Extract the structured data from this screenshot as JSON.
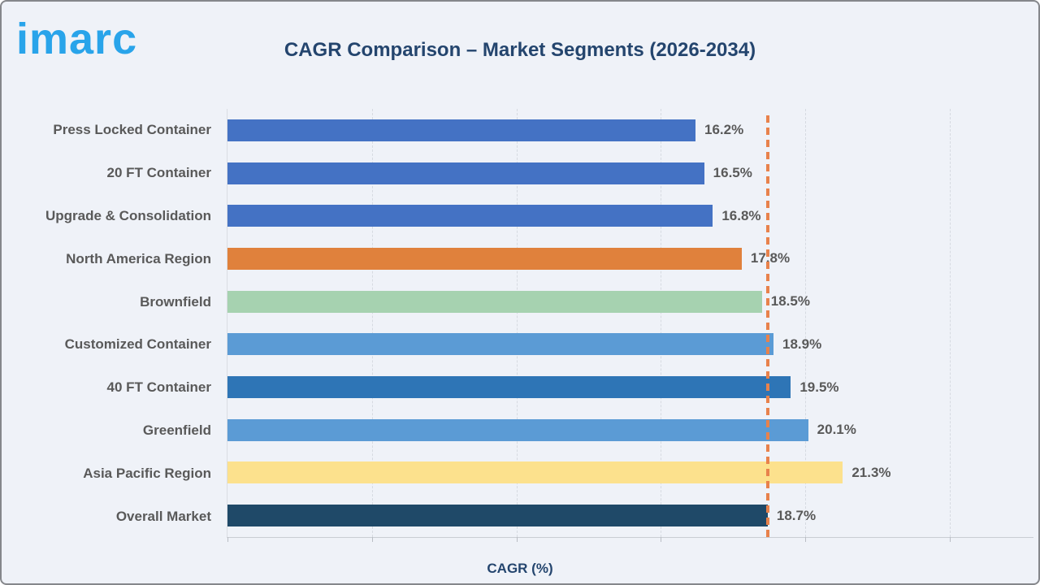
{
  "logo": {
    "text": "imarc",
    "color": "#29A4EA"
  },
  "header": {
    "title": "CAGR Comparison – Market Segments (2026-2034)"
  },
  "chart_data": {
    "type": "bar",
    "orientation": "horizontal",
    "title": "CAGR Comparison – Market Segments (2026-2034)",
    "xlabel": "CAGR (%)",
    "ylabel": "",
    "xlim": [
      0,
      27.9
    ],
    "gridline_step": 5,
    "grid": "vertical-dashed",
    "legend": "none",
    "categories": [
      "Press Locked Container",
      "20 FT Container",
      "Upgrade & Consolidation",
      "North America Region",
      "Brownfield",
      "Customized Container",
      "40 FT Container",
      "Greenfield",
      "Asia Pacific Region",
      "Overall Market"
    ],
    "values": [
      16.2,
      16.5,
      16.8,
      17.8,
      18.5,
      18.9,
      19.5,
      20.1,
      21.3,
      18.7
    ],
    "value_labels": [
      "16.2%",
      "16.5%",
      "16.8%",
      "17.8%",
      "18.5%",
      "18.9%",
      "19.5%",
      "20.1%",
      "21.3%",
      "18.7%"
    ],
    "bar_colors": [
      "#4472C4",
      "#4472C4",
      "#4472C4",
      "#E0813C",
      "#A6D2B0",
      "#5B9BD5",
      "#2E75B6",
      "#5B9BD5",
      "#FCE18D",
      "#1F4968"
    ],
    "reference_line": {
      "value": 18.7,
      "color": "#E8824C",
      "style": "dashed"
    }
  },
  "colors": {
    "background": "#EFF2F8",
    "title_text": "#24456E",
    "label_text": "#595959",
    "gridline": "#D6DAE1"
  }
}
